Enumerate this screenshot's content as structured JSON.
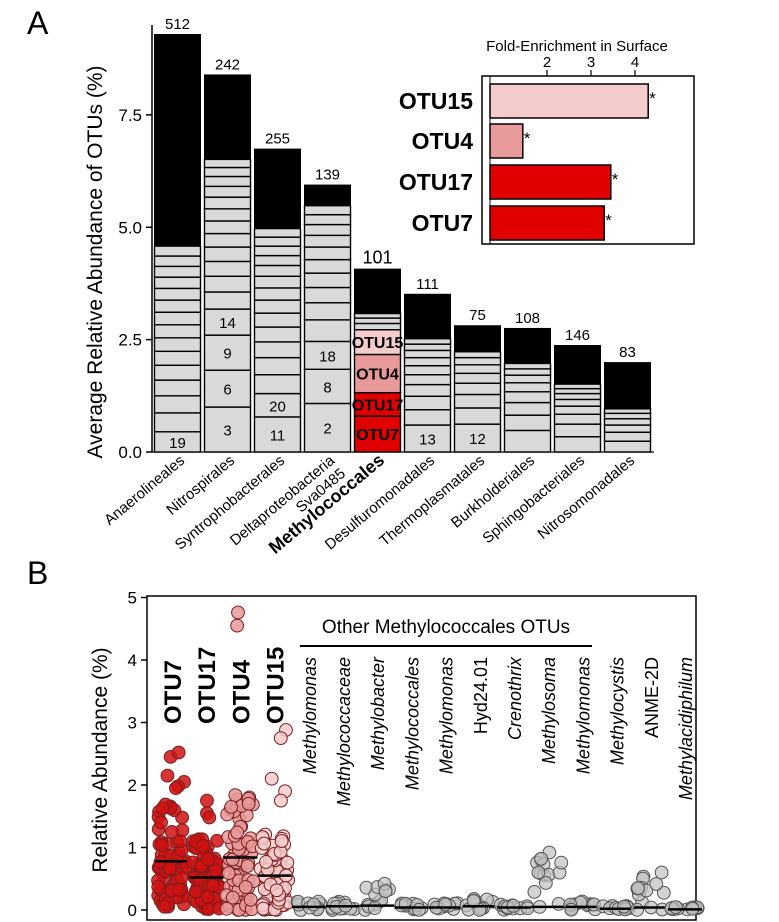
{
  "panels": {
    "a": "A",
    "b": "B"
  },
  "chart_data": [
    {
      "type": "bar",
      "panel": "A",
      "ylabel": "Average Relative Abundance of OTUs (%)",
      "ylim": [
        0,
        9.5
      ],
      "yticks": [
        "0.0",
        "2.5",
        "5.0",
        "7.5"
      ],
      "bars": [
        {
          "name": "Anaerolineales",
          "total": 9.3,
          "count_label": "512",
          "segments": [
            {
              "v": 0.45,
              "label": "19"
            },
            {
              "v": 0.42
            },
            {
              "v": 0.38
            },
            {
              "v": 0.35
            },
            {
              "v": 0.33
            },
            {
              "v": 0.31
            },
            {
              "v": 0.3
            },
            {
              "v": 0.29
            },
            {
              "v": 0.28
            },
            {
              "v": 0.27
            },
            {
              "v": 0.26
            },
            {
              "v": 0.25
            },
            {
              "v": 0.24
            },
            {
              "v": 0.23
            },
            {
              "v": 0.22
            }
          ]
        },
        {
          "name": "Nitrospirales",
          "total": 8.4,
          "count_label": "242",
          "segments": [
            {
              "v": 1.0,
              "label": "3"
            },
            {
              "v": 0.82,
              "label": "6"
            },
            {
              "v": 0.78,
              "label": "9"
            },
            {
              "v": 0.58,
              "label": "14"
            },
            {
              "v": 0.38
            },
            {
              "v": 0.35
            },
            {
              "v": 0.33
            },
            {
              "v": 0.32
            },
            {
              "v": 0.3
            },
            {
              "v": 0.28
            },
            {
              "v": 0.27
            },
            {
              "v": 0.26
            },
            {
              "v": 0.24
            },
            {
              "v": 0.22
            },
            {
              "v": 0.2
            },
            {
              "v": 0.18
            }
          ]
        },
        {
          "name": "Syntrophobacterales",
          "total": 6.75,
          "count_label": "255",
          "segments": [
            {
              "v": 0.78,
              "label": "11"
            },
            {
              "v": 0.52,
              "label": "20"
            },
            {
              "v": 0.42
            },
            {
              "v": 0.38
            },
            {
              "v": 0.35
            },
            {
              "v": 0.33
            },
            {
              "v": 0.31
            },
            {
              "v": 0.29
            },
            {
              "v": 0.27
            },
            {
              "v": 0.26
            },
            {
              "v": 0.24
            },
            {
              "v": 0.22
            },
            {
              "v": 0.21
            },
            {
              "v": 0.2
            },
            {
              "v": 0.19
            }
          ]
        },
        {
          "name": "Deltaproteobacteria Sva0485",
          "name_lines": [
            "Deltaproteobacteria",
            "Sva0485"
          ],
          "total": 5.95,
          "count_label": "139",
          "segments": [
            {
              "v": 1.08,
              "label": "2"
            },
            {
              "v": 0.76,
              "label": "8"
            },
            {
              "v": 0.62,
              "label": "18"
            },
            {
              "v": 0.48
            },
            {
              "v": 0.38
            },
            {
              "v": 0.34
            },
            {
              "v": 0.32
            },
            {
              "v": 0.3
            },
            {
              "v": 0.28
            },
            {
              "v": 0.26
            },
            {
              "v": 0.24
            },
            {
              "v": 0.22
            },
            {
              "v": 0.2
            }
          ]
        },
        {
          "name": "Methylococcales",
          "highlight": true,
          "total": 4.08,
          "count_label": "101",
          "segments": [
            {
              "v": 0.8,
              "label": "OTU7",
              "color": "#e10000"
            },
            {
              "v": 0.52,
              "label": "OTU17",
              "color": "#e10000"
            },
            {
              "v": 0.85,
              "label": "OTU4",
              "color": "#e8999a"
            },
            {
              "v": 0.55,
              "label": "OTU15",
              "color": "#f4cccc"
            },
            {
              "v": 0.14
            },
            {
              "v": 0.12
            },
            {
              "v": 0.1
            }
          ]
        },
        {
          "name": "Desulfuromonadales",
          "total": 3.52,
          "count_label": "111",
          "segments": [
            {
              "v": 0.6,
              "label": "13"
            },
            {
              "v": 0.34
            },
            {
              "v": 0.3
            },
            {
              "v": 0.26
            },
            {
              "v": 0.22
            },
            {
              "v": 0.2
            },
            {
              "v": 0.18
            },
            {
              "v": 0.16
            },
            {
              "v": 0.14
            },
            {
              "v": 0.12
            }
          ]
        },
        {
          "name": "Thermoplasmatales",
          "total": 2.82,
          "count_label": "75",
          "segments": [
            {
              "v": 0.62,
              "label": "12"
            },
            {
              "v": 0.36
            },
            {
              "v": 0.3
            },
            {
              "v": 0.25
            },
            {
              "v": 0.22
            },
            {
              "v": 0.19
            },
            {
              "v": 0.16
            },
            {
              "v": 0.13
            }
          ]
        },
        {
          "name": "Burkholderiales",
          "total": 2.76,
          "count_label": "108",
          "segments": [
            {
              "v": 0.48
            },
            {
              "v": 0.34
            },
            {
              "v": 0.28
            },
            {
              "v": 0.24
            },
            {
              "v": 0.2
            },
            {
              "v": 0.17
            },
            {
              "v": 0.14
            },
            {
              "v": 0.12
            }
          ]
        },
        {
          "name": "Sphingobacteriales",
          "total": 2.38,
          "count_label": "146",
          "segments": [
            {
              "v": 0.34
            },
            {
              "v": 0.28
            },
            {
              "v": 0.22
            },
            {
              "v": 0.18
            },
            {
              "v": 0.15
            },
            {
              "v": 0.13
            },
            {
              "v": 0.11
            },
            {
              "v": 0.1
            }
          ]
        },
        {
          "name": "Nitrosomonadales",
          "total": 2.0,
          "count_label": "83",
          "segments": [
            {
              "v": 0.24
            },
            {
              "v": 0.2
            },
            {
              "v": 0.16
            },
            {
              "v": 0.14
            },
            {
              "v": 0.12
            },
            {
              "v": 0.1
            }
          ]
        }
      ]
    },
    {
      "type": "bar",
      "panel": "A-inset",
      "orientation": "horizontal",
      "xlabel": "Fold-Enrichment in Surface",
      "xticks": [
        "2",
        "3",
        "4"
      ],
      "xlim": [
        1,
        4.6
      ],
      "categories": [
        "OTU15",
        "OTU4",
        "OTU17",
        "OTU7"
      ],
      "values": [
        4.3,
        1.45,
        3.45,
        3.3
      ],
      "colors": [
        "#f4cccc",
        "#e8999a",
        "#e10000",
        "#e10000"
      ],
      "annotations": [
        "*",
        "*",
        "*",
        "*"
      ]
    },
    {
      "type": "scatter",
      "panel": "B",
      "ylabel": "Relative Abundance (%)",
      "ylim": [
        0,
        5
      ],
      "yticks": [
        "0",
        "1",
        "2",
        "3",
        "4",
        "5"
      ],
      "group_header": "Other Methylococcales OTUs",
      "groups": [
        {
          "label": "OTU7",
          "style": "bold",
          "color": "#d01212",
          "mean": 0.78,
          "max": 2.5,
          "outliers": [
            2.45,
            2.52,
            2.15,
            2.05,
            1.98,
            1.95
          ]
        },
        {
          "label": "OTU17",
          "style": "bold",
          "color": "#d01212",
          "mean": 0.52,
          "max": 1.75,
          "outliers": [
            1.75,
            1.55,
            1.48
          ]
        },
        {
          "label": "OTU4",
          "style": "bold",
          "color": "#e8999a",
          "mean": 0.84,
          "max": 4.76,
          "outliers": [
            4.76,
            4.55,
            1.78,
            1.65,
            1.7
          ]
        },
        {
          "label": "OTU15",
          "style": "bold",
          "color": "#f4cccc",
          "mean": 0.55,
          "max": 2.88,
          "outliers": [
            2.88,
            2.75,
            2.1,
            1.9,
            1.75
          ]
        },
        {
          "label": "Methylomonas",
          "style": "italic",
          "color": "#c0c0c0",
          "mean": 0.05,
          "max": 0.15,
          "outliers": []
        },
        {
          "label": "Methylococcaceae",
          "style": "italic",
          "color": "#c0c0c0",
          "mean": 0.06,
          "max": 0.18,
          "outliers": []
        },
        {
          "label": "Methylobacter",
          "style": "italic",
          "color": "#c0c0c0",
          "mean": 0.07,
          "max": 0.42,
          "outliers": [
            0.42,
            0.3
          ]
        },
        {
          "label": "Methylococcales",
          "style": "italic",
          "color": "#c0c0c0",
          "mean": 0.04,
          "max": 0.12,
          "outliers": []
        },
        {
          "label": "Methylomonas",
          "style": "italic",
          "color": "#c0c0c0",
          "mean": 0.04,
          "max": 0.14,
          "outliers": []
        },
        {
          "label": "Hyd24.01",
          "style": "normal",
          "color": "#c0c0c0",
          "mean": 0.06,
          "max": 0.2,
          "outliers": []
        },
        {
          "label": "Crenothrix",
          "style": "italic",
          "color": "#c0c0c0",
          "mean": 0.04,
          "max": 0.12,
          "outliers": []
        },
        {
          "label": "Methylosoma",
          "style": "italic",
          "color": "#c0c0c0",
          "mean": 0.05,
          "max": 0.92,
          "outliers": [
            0.92,
            0.82,
            0.6
          ]
        },
        {
          "label": "Methylomonas",
          "style": "italic",
          "color": "#c0c0c0",
          "mean": 0.05,
          "max": 0.16,
          "outliers": []
        },
        {
          "label": "Methylocystis",
          "style": "italic",
          "color": "#c0c0c0",
          "mean": 0.02,
          "max": 0.08,
          "outliers": []
        },
        {
          "label": "ANME-2D",
          "style": "normal",
          "color": "#c0c0c0",
          "mean": 0.04,
          "max": 0.6,
          "outliers": [
            0.6,
            0.35
          ]
        },
        {
          "label": "Methylacidiphilum",
          "style": "italic",
          "color": "#c0c0c0",
          "mean": 0.01,
          "max": 0.05,
          "outliers": []
        }
      ]
    }
  ]
}
